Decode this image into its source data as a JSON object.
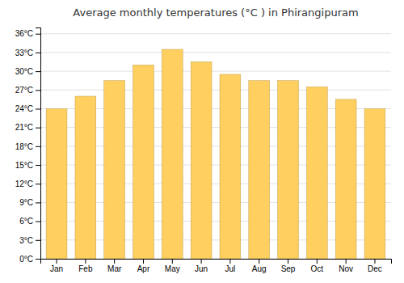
{
  "chart_data": {
    "type": "bar",
    "title": "Average monthly temperatures (°C ) in Phirangipuram",
    "categories": [
      "Jan",
      "Feb",
      "Mar",
      "Apr",
      "May",
      "Jun",
      "Jul",
      "Aug",
      "Sep",
      "Oct",
      "Nov",
      "Dec"
    ],
    "values": [
      24,
      26,
      28.5,
      31,
      33.5,
      31.5,
      29.5,
      28.5,
      28.5,
      27.5,
      25.5,
      24
    ],
    "color": "#FFD060",
    "ylim": [
      0,
      37
    ],
    "yticks": [
      {
        "value": 0,
        "label": "0°C"
      },
      {
        "value": 3,
        "label": "3°C"
      },
      {
        "value": 6,
        "label": "6°C"
      },
      {
        "value": 9,
        "label": "9°C"
      },
      {
        "value": 12,
        "label": "12°C"
      },
      {
        "value": 15,
        "label": "15°C"
      },
      {
        "value": 18,
        "label": "18°C"
      },
      {
        "value": 21,
        "label": "21°C"
      },
      {
        "value": 24,
        "label": "24°C"
      },
      {
        "value": 27,
        "label": "27°C"
      },
      {
        "value": 30,
        "label": "30°C"
      },
      {
        "value": 33,
        "label": "33°C"
      },
      {
        "value": 36,
        "label": "36°C"
      }
    ],
    "grid": true
  }
}
